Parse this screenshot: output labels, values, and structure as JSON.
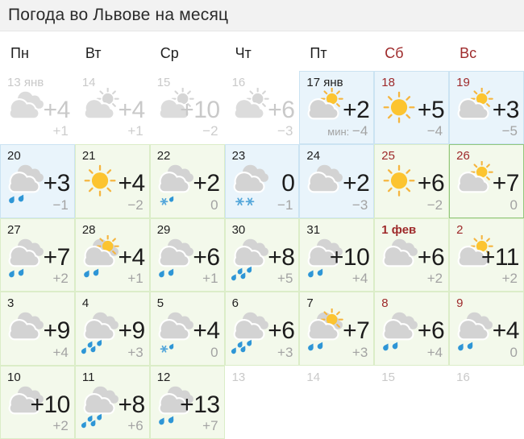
{
  "title": "Погода во Львове на месяц",
  "colors": {
    "sun": "#fcc430",
    "sun_rays": "#f5b53f",
    "cloud": "#d3d3d3",
    "cloud_muted": "#dcdcdc",
    "rain_drop": "#2e96d6",
    "snow_flake": "#55a7da",
    "weekend_red": "#9e2a2b",
    "cell_blue_bg": "#e9f4fb",
    "cell_green_bg": "#f3f9eb",
    "highlight_border": "#92c77c"
  },
  "weekdays": [
    {
      "label": "Пн",
      "weekend": false
    },
    {
      "label": "Вт",
      "weekend": false
    },
    {
      "label": "Ср",
      "weekend": false
    },
    {
      "label": "Чт",
      "weekend": false
    },
    {
      "label": "Пт",
      "weekend": false
    },
    {
      "label": "Сб",
      "weekend": true
    },
    {
      "label": "Вс",
      "weekend": true
    }
  ],
  "calendar": {
    "rows": [
      [
        {
          "date": "13 янв",
          "style": "past",
          "bg": "none",
          "icon": "cloudy",
          "day": "+4",
          "night": "+1"
        },
        {
          "date": "14",
          "style": "past",
          "bg": "none",
          "icon": "sun-cloud",
          "day": "+4",
          "night": "+1"
        },
        {
          "date": "15",
          "style": "past",
          "bg": "none",
          "icon": "sun-cloud",
          "day": "+10",
          "night": "−2"
        },
        {
          "date": "16",
          "style": "past",
          "bg": "none",
          "icon": "sun-cloud",
          "day": "+6",
          "night": "−3"
        },
        {
          "date": "17 янв",
          "style": "normal",
          "bg": "blue",
          "icon": "sun-cloud",
          "day": "+2",
          "night": "−4",
          "min_label": "мин:"
        },
        {
          "date": "18",
          "style": "red",
          "bg": "blue",
          "icon": "sun",
          "day": "+5",
          "night": "−4"
        },
        {
          "date": "19",
          "style": "red",
          "bg": "blue",
          "icon": "sun-cloud",
          "day": "+3",
          "night": "−5"
        }
      ],
      [
        {
          "date": "20",
          "style": "normal",
          "bg": "blue",
          "icon": "cloud-rain",
          "day": "+3",
          "night": "−1"
        },
        {
          "date": "21",
          "style": "normal",
          "bg": "green",
          "icon": "sun",
          "day": "+4",
          "night": "−2"
        },
        {
          "date": "22",
          "style": "normal",
          "bg": "green",
          "icon": "cloud-snow-rain",
          "day": "+2",
          "night": "0"
        },
        {
          "date": "23",
          "style": "normal",
          "bg": "blue",
          "icon": "cloud-snow",
          "day": "0",
          "night": "−1"
        },
        {
          "date": "24",
          "style": "normal",
          "bg": "blue",
          "icon": "cloudy",
          "day": "+2",
          "night": "−3"
        },
        {
          "date": "25",
          "style": "red",
          "bg": "green",
          "icon": "sun",
          "day": "+6",
          "night": "−2"
        },
        {
          "date": "26",
          "style": "red",
          "bg": "green",
          "highlight": true,
          "icon": "sun-cloud",
          "day": "+7",
          "night": "0"
        }
      ],
      [
        {
          "date": "27",
          "style": "normal",
          "bg": "green",
          "icon": "cloud-rain",
          "day": "+7",
          "night": "+2"
        },
        {
          "date": "28",
          "style": "normal",
          "bg": "green",
          "icon": "sun-cloud-rain",
          "day": "+4",
          "night": "+1"
        },
        {
          "date": "29",
          "style": "normal",
          "bg": "green",
          "icon": "cloud-rain",
          "day": "+6",
          "night": "+1"
        },
        {
          "date": "30",
          "style": "normal",
          "bg": "green",
          "icon": "cloud-rain-heavy",
          "day": "+8",
          "night": "+5"
        },
        {
          "date": "31",
          "style": "normal",
          "bg": "green",
          "icon": "cloud-rain",
          "day": "+10",
          "night": "+4"
        },
        {
          "date": "1 фев",
          "style": "red-bold",
          "bg": "green",
          "icon": "cloudy",
          "day": "+6",
          "night": "+2"
        },
        {
          "date": "2",
          "style": "red",
          "bg": "green",
          "icon": "sun-cloud",
          "day": "+11",
          "night": "+2"
        }
      ],
      [
        {
          "date": "3",
          "style": "normal",
          "bg": "green",
          "icon": "cloudy",
          "day": "+9",
          "night": "+4"
        },
        {
          "date": "4",
          "style": "normal",
          "bg": "green",
          "icon": "cloud-rain-heavy",
          "day": "+9",
          "night": "+3"
        },
        {
          "date": "5",
          "style": "normal",
          "bg": "green",
          "icon": "cloud-snow-rain",
          "day": "+4",
          "night": "0"
        },
        {
          "date": "6",
          "style": "normal",
          "bg": "green",
          "icon": "cloud-rain-heavy",
          "day": "+6",
          "night": "+3"
        },
        {
          "date": "7",
          "style": "normal",
          "bg": "green",
          "icon": "sun-cloud-rain",
          "day": "+7",
          "night": "+3"
        },
        {
          "date": "8",
          "style": "red",
          "bg": "green",
          "icon": "cloud-rain",
          "day": "+6",
          "night": "+4"
        },
        {
          "date": "9",
          "style": "red",
          "bg": "green",
          "icon": "cloud-rain",
          "day": "+4",
          "night": "0"
        }
      ],
      [
        {
          "date": "10",
          "style": "normal",
          "bg": "green",
          "icon": "cloudy",
          "day": "+10",
          "night": "+2"
        },
        {
          "date": "11",
          "style": "normal",
          "bg": "green",
          "icon": "cloud-rain-heavy",
          "day": "+8",
          "night": "+6"
        },
        {
          "date": "12",
          "style": "normal",
          "bg": "green",
          "icon": "cloud-rain",
          "day": "+13",
          "night": "+7"
        },
        {
          "date": "13",
          "style": "past",
          "bg": "none",
          "icon": "none",
          "day": "",
          "night": ""
        },
        {
          "date": "14",
          "style": "past",
          "bg": "none",
          "icon": "none",
          "day": "",
          "night": ""
        },
        {
          "date": "15",
          "style": "past",
          "bg": "none",
          "icon": "none",
          "day": "",
          "night": ""
        },
        {
          "date": "16",
          "style": "past",
          "bg": "none",
          "icon": "none",
          "day": "",
          "night": ""
        }
      ]
    ]
  }
}
